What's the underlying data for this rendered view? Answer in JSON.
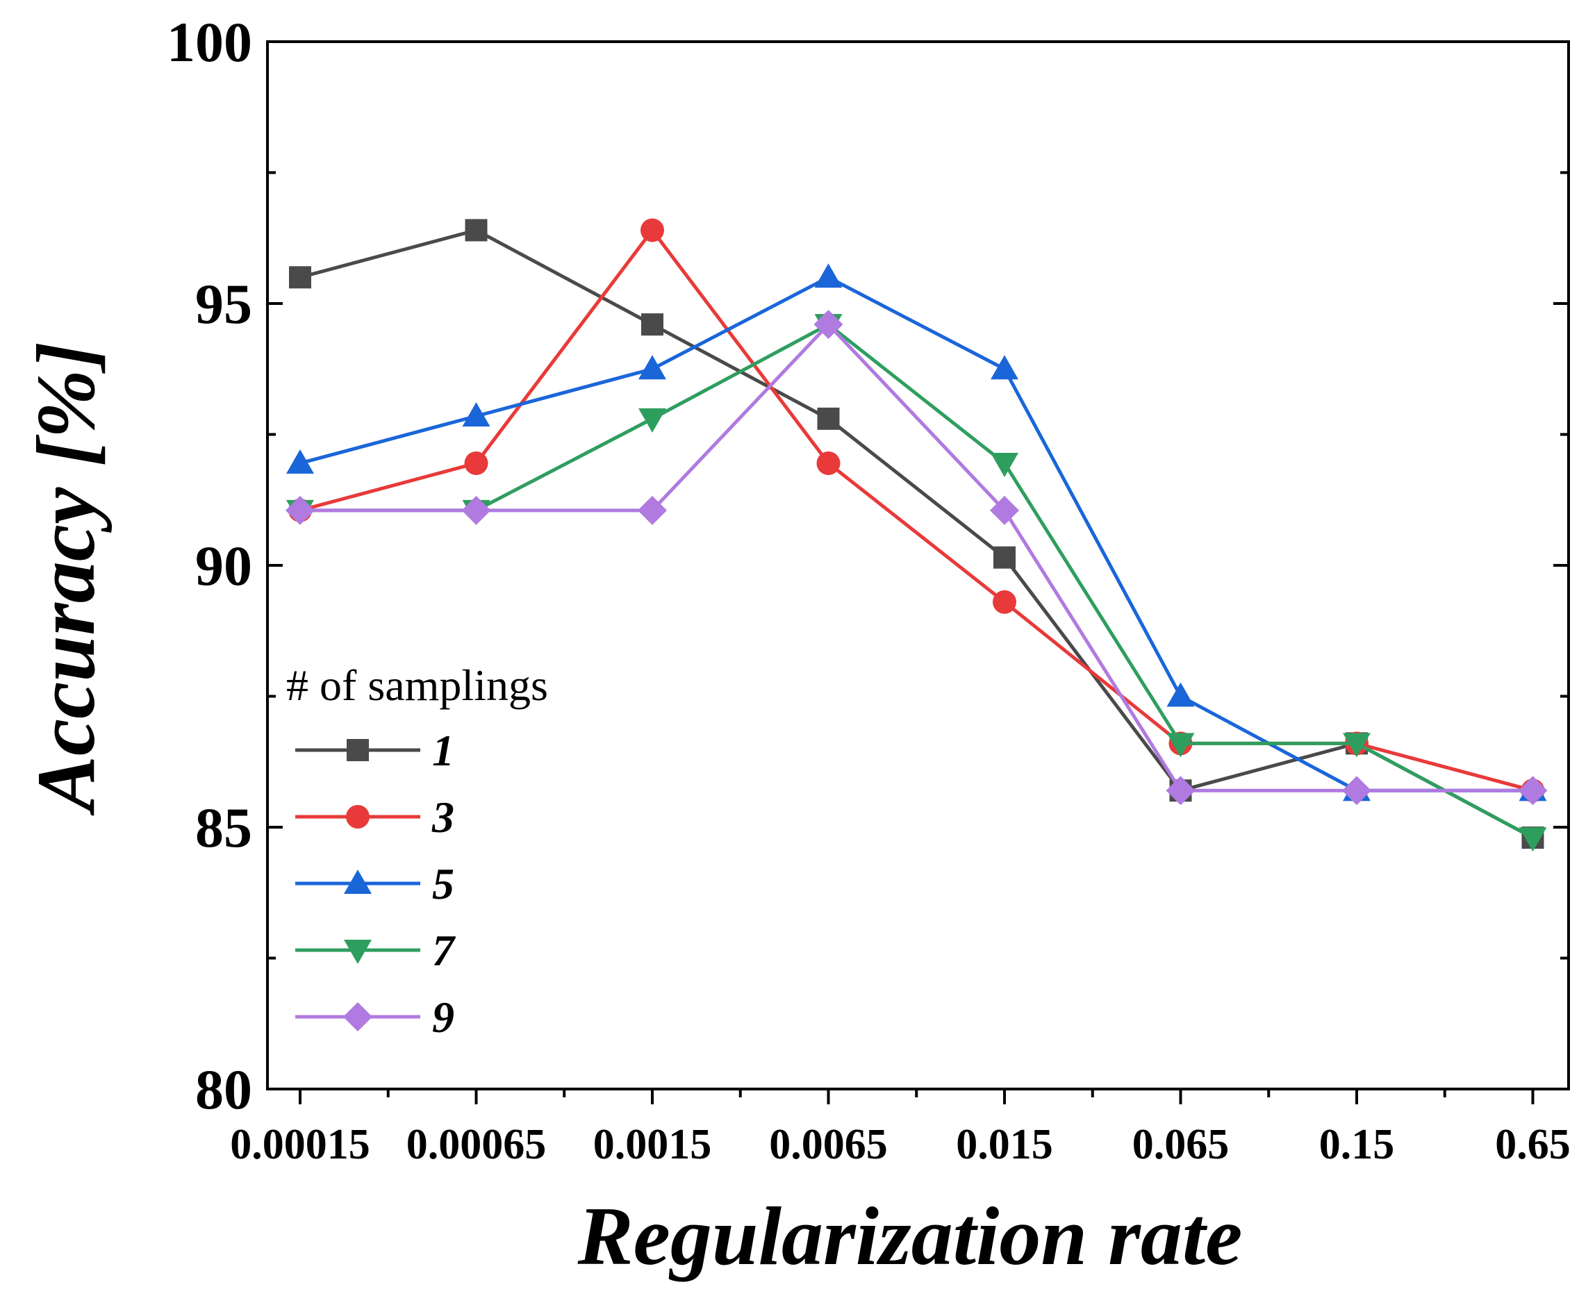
{
  "chart_data": {
    "type": "line",
    "title": "",
    "xlabel": "Regularization rate",
    "ylabel": "Accuracy [%]",
    "categories": [
      "0.00015",
      "0.00065",
      "0.0015",
      "0.0065",
      "0.015",
      "0.065",
      "0.15",
      "0.65"
    ],
    "ylim": [
      80,
      100
    ],
    "yticks": [
      "80",
      "85",
      "90",
      "95",
      "100"
    ],
    "grid": false,
    "legend": {
      "title": "# of samplings",
      "position": "lower-left"
    },
    "series": [
      {
        "name": "1",
        "color": "#4a4a4a",
        "marker": "square",
        "values": [
          95.5,
          96.4,
          94.6,
          92.8,
          90.15,
          85.7,
          86.6,
          84.8
        ]
      },
      {
        "name": "3",
        "color": "#e83a3a",
        "marker": "circle",
        "values": [
          91.05,
          91.95,
          96.4,
          91.95,
          89.3,
          86.6,
          86.6,
          85.7
        ]
      },
      {
        "name": "5",
        "color": "#1a66d9",
        "marker": "triangle-up",
        "values": [
          91.95,
          92.85,
          93.75,
          95.5,
          93.75,
          87.5,
          85.7,
          85.7
        ]
      },
      {
        "name": "7",
        "color": "#2e9e5e",
        "marker": "triangle-down",
        "values": [
          91.05,
          91.05,
          92.8,
          94.6,
          91.95,
          86.6,
          86.6,
          84.8
        ]
      },
      {
        "name": "9",
        "color": "#b07ae0",
        "marker": "diamond",
        "values": [
          91.05,
          91.05,
          91.05,
          94.6,
          91.05,
          85.7,
          85.7,
          85.7
        ]
      }
    ]
  }
}
